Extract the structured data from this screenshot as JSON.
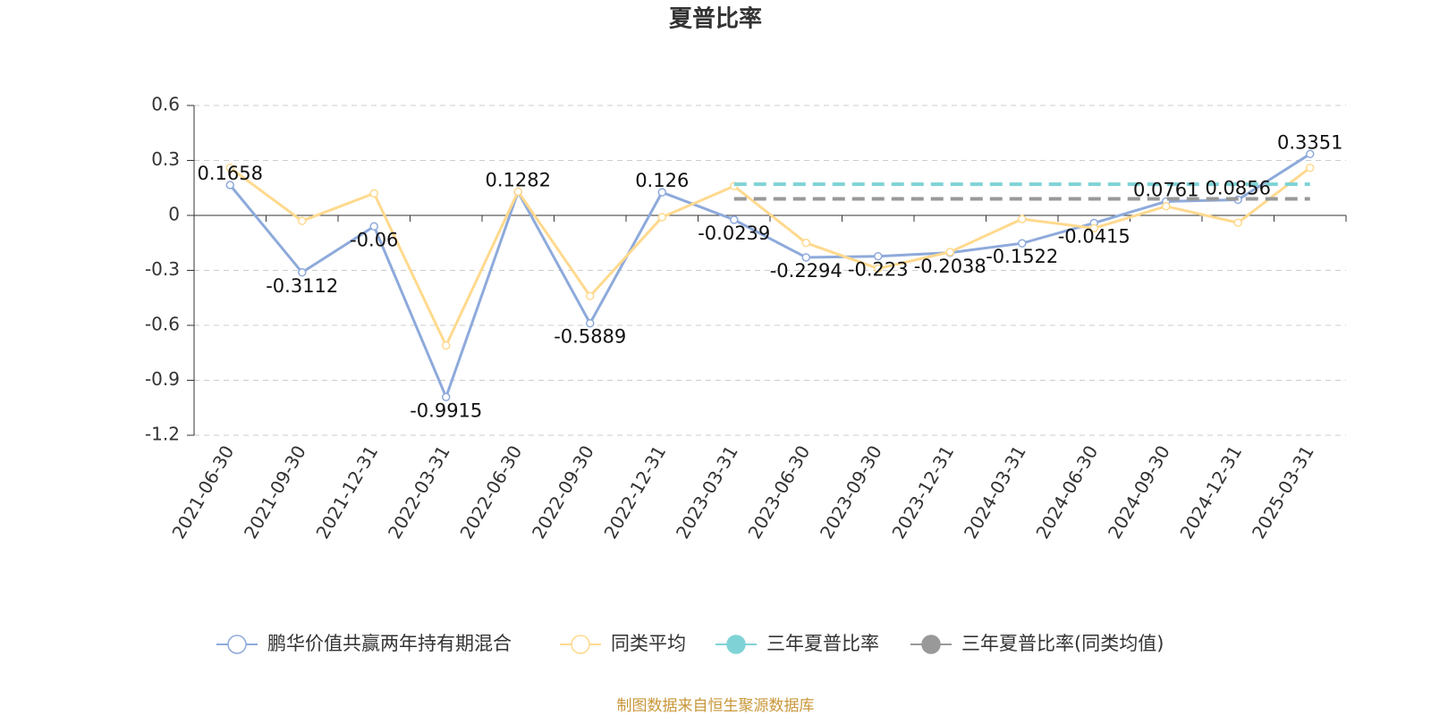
{
  "chart_data": {
    "type": "line",
    "title": "夏普比率",
    "categories": [
      "2021-06-30",
      "2021-09-30",
      "2021-12-31",
      "2022-03-31",
      "2022-06-30",
      "2022-09-30",
      "2022-12-31",
      "2023-03-31",
      "2023-06-30",
      "2023-09-30",
      "2023-12-31",
      "2024-03-31",
      "2024-06-30",
      "2024-09-30",
      "2024-12-31",
      "2025-03-31"
    ],
    "series": [
      {
        "name": "鹏华价值共赢两年持有期混合",
        "color": "#8eaadb",
        "values": [
          0.1658,
          -0.3112,
          -0.06,
          -0.9915,
          0.1282,
          -0.5889,
          0.126,
          -0.0239,
          -0.2294,
          -0.223,
          -0.2038,
          -0.1522,
          -0.0415,
          0.0761,
          0.0856,
          0.3351
        ]
      },
      {
        "name": "同类平均",
        "color": "#ffd98e",
        "values": [
          0.26,
          -0.03,
          0.12,
          -0.71,
          0.13,
          -0.44,
          -0.01,
          0.16,
          -0.15,
          -0.29,
          -0.2,
          -0.02,
          -0.07,
          0.05,
          -0.04,
          0.26
        ]
      },
      {
        "name": "三年夏普比率",
        "color": "#7fd3d6",
        "values": [
          null,
          null,
          null,
          null,
          null,
          null,
          null,
          0.17,
          0.17,
          0.17,
          0.17,
          0.17,
          0.17,
          0.17,
          0.17,
          0.17
        ]
      },
      {
        "name": "三年夏普比率(同类均值)",
        "color": "#999999",
        "values": [
          null,
          null,
          null,
          null,
          null,
          null,
          null,
          0.09,
          0.09,
          0.09,
          0.09,
          0.09,
          0.09,
          0.09,
          0.09,
          0.09
        ]
      }
    ],
    "ylim": [
      -1.2,
      0.6
    ],
    "yticks": [
      0.6,
      0.3,
      0,
      -0.3,
      -0.6,
      -0.9,
      -1.2
    ],
    "grid": true,
    "source": "制图数据来自恒生聚源数据库"
  }
}
